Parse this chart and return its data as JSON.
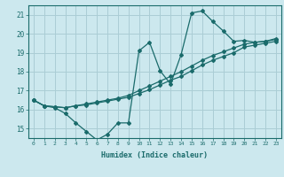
{
  "title": "",
  "xlabel": "Humidex (Indice chaleur)",
  "bg_color": "#cce8ee",
  "line_color": "#1a6b6b",
  "grid_color": "#aacdd5",
  "xlim": [
    -0.5,
    23.5
  ],
  "ylim": [
    14.5,
    21.5
  ],
  "yticks": [
    15,
    16,
    17,
    18,
    19,
    20,
    21
  ],
  "xticks": [
    0,
    1,
    2,
    3,
    4,
    5,
    6,
    7,
    8,
    9,
    10,
    11,
    12,
    13,
    14,
    15,
    16,
    17,
    18,
    19,
    20,
    21,
    22,
    23
  ],
  "hours": [
    0,
    1,
    2,
    3,
    4,
    5,
    6,
    7,
    8,
    9,
    10,
    11,
    12,
    13,
    14,
    15,
    16,
    17,
    18,
    19,
    20,
    21,
    22,
    23
  ],
  "line1": [
    16.5,
    16.2,
    16.1,
    15.8,
    15.3,
    14.85,
    14.4,
    14.7,
    15.3,
    15.3,
    19.1,
    19.55,
    18.05,
    17.35,
    18.9,
    21.1,
    21.2,
    20.65,
    20.15,
    19.6,
    19.65,
    19.55,
    19.6,
    19.75
  ],
  "line2": [
    16.5,
    16.2,
    16.15,
    16.1,
    16.2,
    16.3,
    16.4,
    16.5,
    16.6,
    16.75,
    17.0,
    17.25,
    17.5,
    17.75,
    18.0,
    18.3,
    18.6,
    18.85,
    19.05,
    19.25,
    19.45,
    19.55,
    19.6,
    19.7
  ],
  "line3": [
    16.5,
    16.2,
    16.15,
    16.1,
    16.2,
    16.25,
    16.35,
    16.45,
    16.55,
    16.65,
    16.85,
    17.05,
    17.3,
    17.55,
    17.75,
    18.05,
    18.35,
    18.6,
    18.8,
    19.0,
    19.3,
    19.4,
    19.5,
    19.6
  ]
}
